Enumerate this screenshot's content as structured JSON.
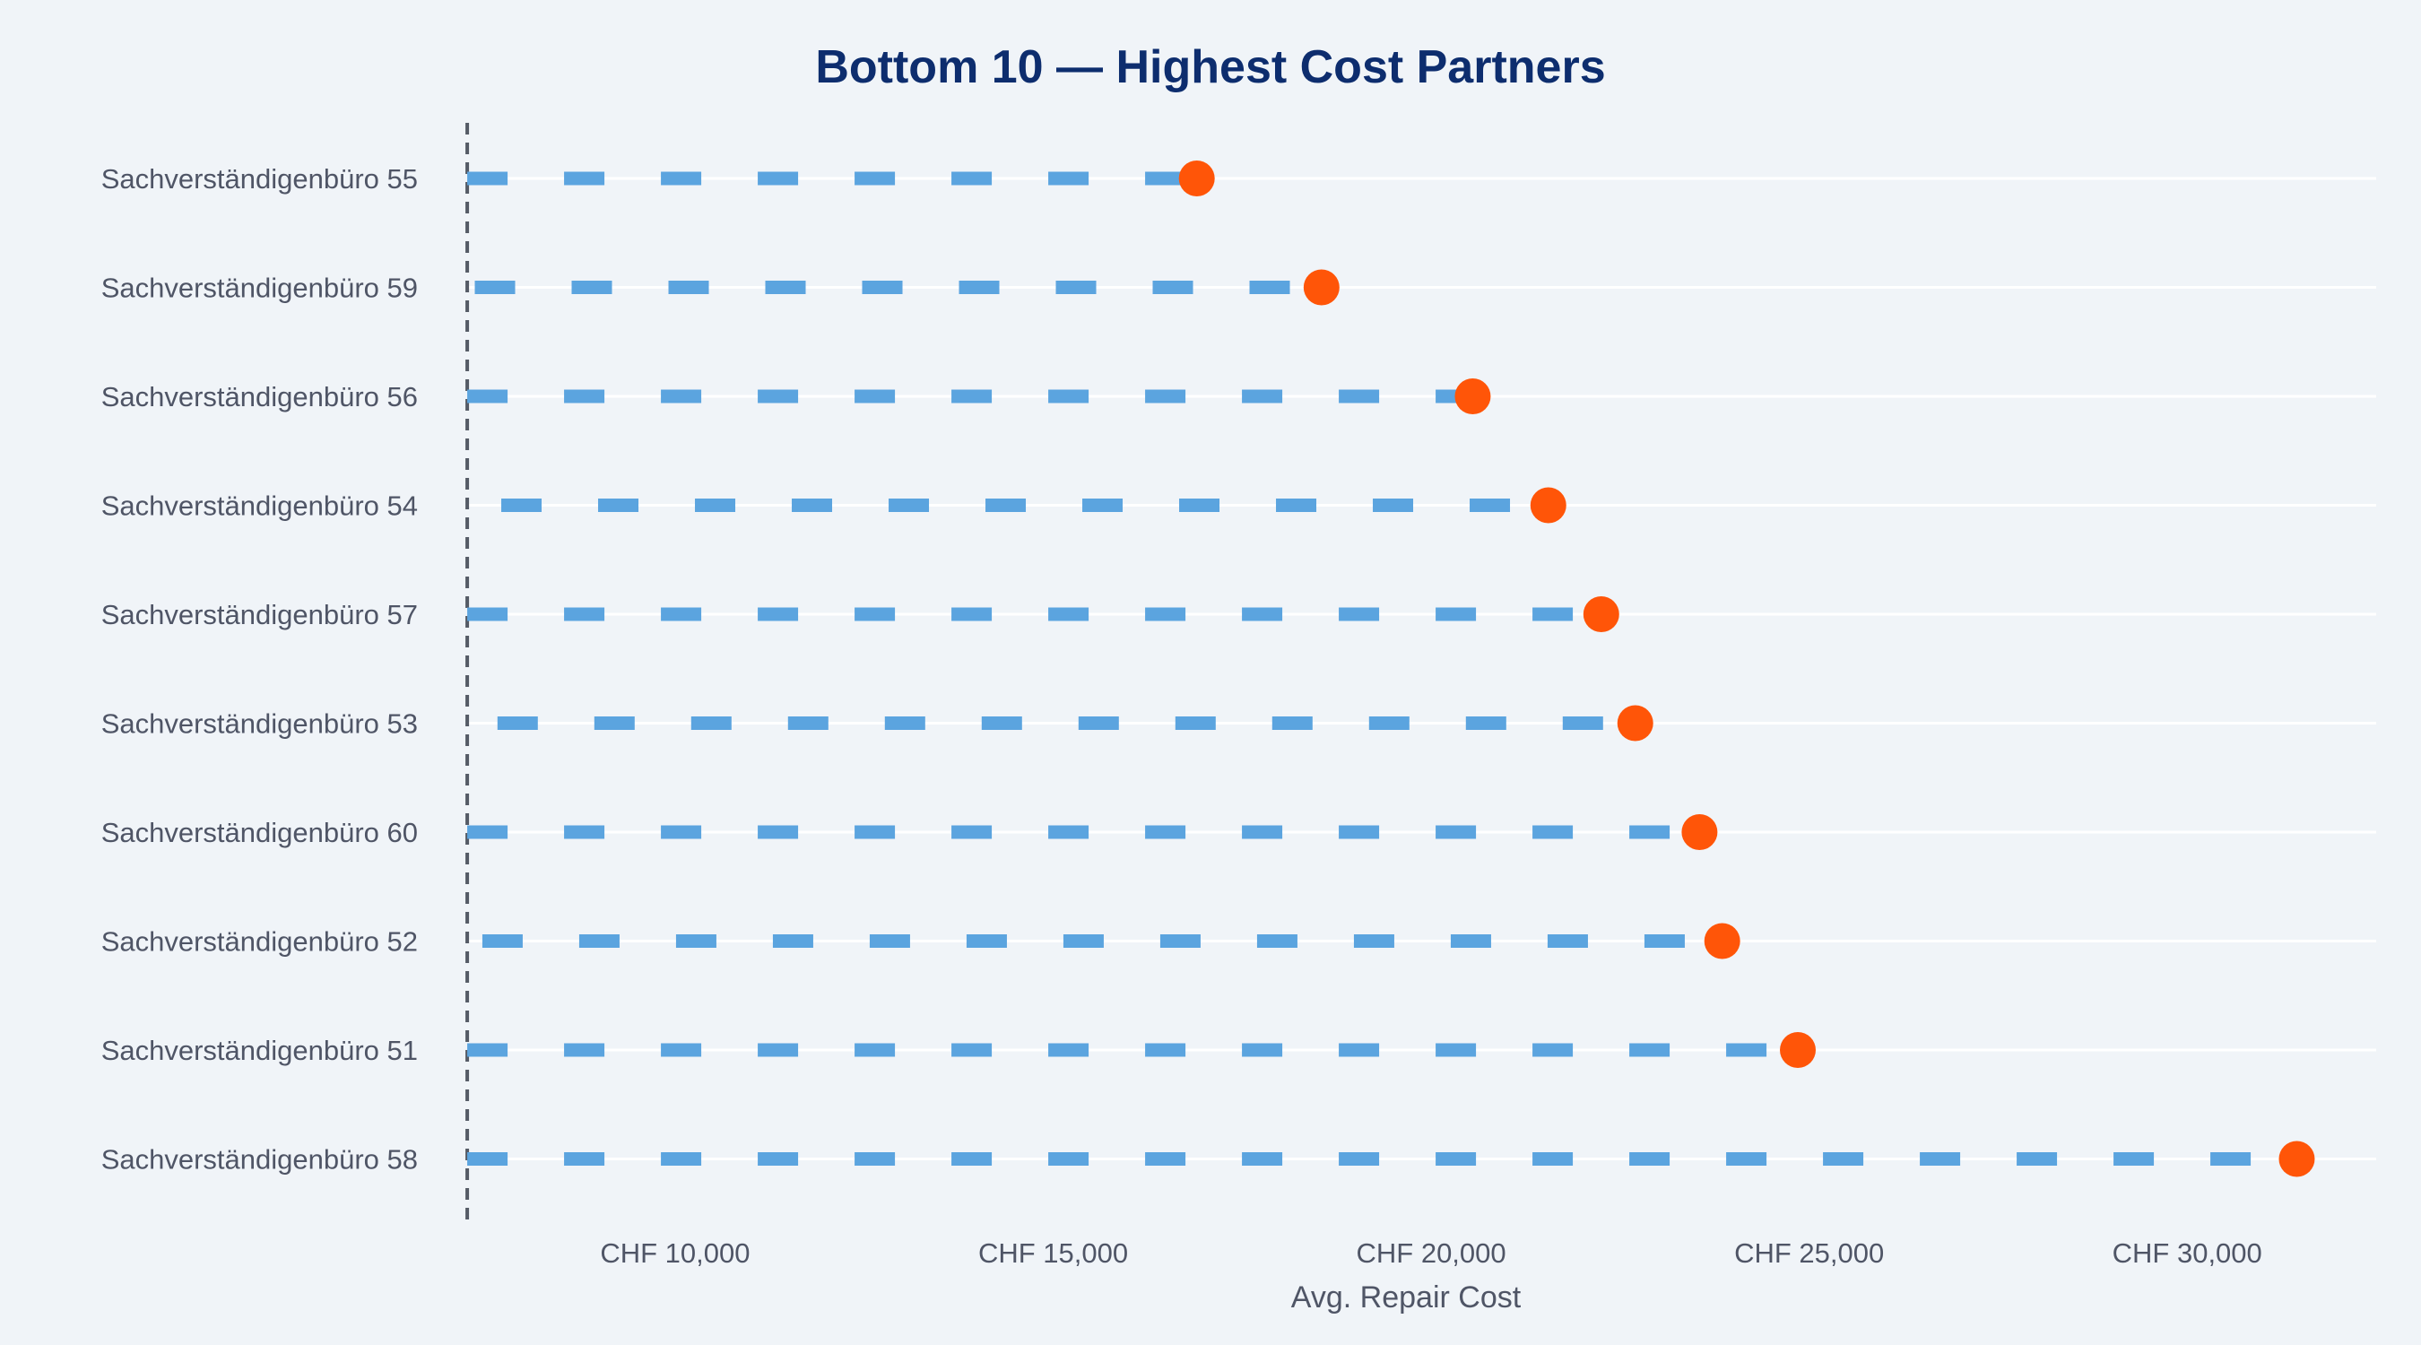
{
  "chart_data": {
    "type": "lollipop",
    "title": "Bottom 10 — Highest Cost Partners",
    "xlabel": "Avg. Repair Cost",
    "ylabel": "",
    "xlim": [
      7000,
      32500
    ],
    "x_ticks": [
      10000,
      15000,
      20000,
      25000,
      30000
    ],
    "x_tick_labels": [
      "CHF 10,000",
      "CHF 15,000",
      "CHF 20,000",
      "CHF 25,000",
      "CHF 30,000"
    ],
    "reference_line": 7250,
    "rows": [
      {
        "label": "Sachverständigenbüro 55",
        "start": 7250,
        "value": 16900
      },
      {
        "label": "Sachverständigenbüro 59",
        "start": 7350,
        "value": 18550
      },
      {
        "label": "Sachverständigenbüro 56",
        "start": 7250,
        "value": 20550
      },
      {
        "label": "Sachverständigenbüro 54",
        "start": 7700,
        "value": 21550
      },
      {
        "label": "Sachverständigenbüro 57",
        "start": 7250,
        "value": 22250
      },
      {
        "label": "Sachverständigenbüro 53",
        "start": 7650,
        "value": 22700
      },
      {
        "label": "Sachverständigenbüro 60",
        "start": 7250,
        "value": 23550
      },
      {
        "label": "Sachverständigenbüro 52",
        "start": 7450,
        "value": 23850
      },
      {
        "label": "Sachverständigenbüro 51",
        "start": 7250,
        "value": 24850
      },
      {
        "label": "Sachverständigenbüro 58",
        "start": 7250,
        "value": 31450
      }
    ],
    "colors": {
      "stem": "#5ba4df",
      "dot": "#ff5508",
      "reference": "#555b66",
      "grid": "#ffffff",
      "title": "#0d2d6e",
      "text": "#4f5566"
    }
  }
}
